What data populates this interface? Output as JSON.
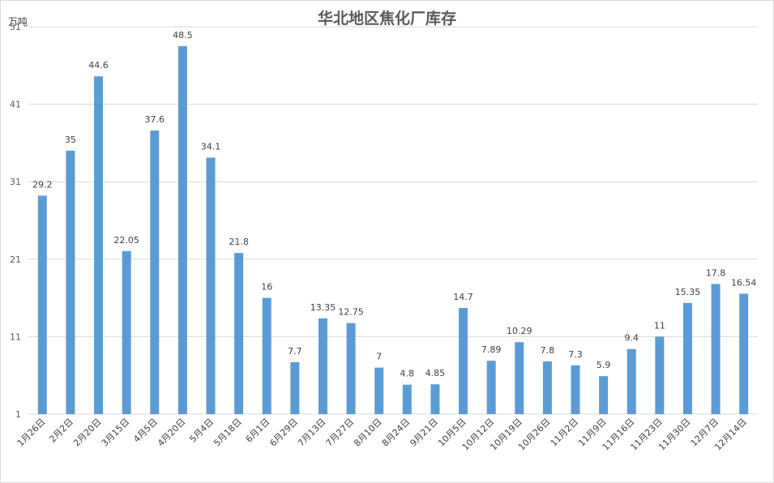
{
  "chart_data": {
    "type": "bar",
    "title": "华北地区焦化厂库存",
    "ylabel": "万吨",
    "xlabel": "",
    "ylim": [
      1,
      51
    ],
    "yticks": [
      1,
      11,
      21,
      31,
      41,
      51
    ],
    "grid": true,
    "legend": "none",
    "bar_color": "#5b9bd5",
    "grid_color": "#d9d9d9",
    "categories": [
      "1月26日",
      "2月2日",
      "2月20日",
      "3月15日",
      "4月5日",
      "4月20日",
      "5月4日",
      "5月18日",
      "6月1日",
      "6月29日",
      "7月13日",
      "7月27日",
      "8月10日",
      "8月24日",
      "9月21日",
      "10月5日",
      "10月12日",
      "10月19日",
      "10月26日",
      "11月2日",
      "11月9日",
      "11月16日",
      "11月23日",
      "11月30日",
      "12月7日",
      "12月14日"
    ],
    "values": [
      29.2,
      35,
      44.6,
      22.05,
      37.6,
      48.5,
      34.1,
      21.8,
      16,
      7.7,
      13.35,
      12.75,
      7,
      4.8,
      4.85,
      14.7,
      7.89,
      10.29,
      7.8,
      7.3,
      5.9,
      9.4,
      11,
      15.35,
      17.8,
      16.54
    ],
    "labels": [
      "29.2",
      "35",
      "44.6",
      "22.05",
      "37.6",
      "48.5",
      "34.1",
      "21.8",
      "16",
      "7.7",
      "13.35",
      "12.75",
      "7",
      "4.8",
      "4.85",
      "14.7",
      "7.89",
      "10.29",
      "7.8",
      "7.3",
      "5.9",
      "9.4",
      "11",
      "15.35",
      "17.8",
      "16.54"
    ]
  }
}
